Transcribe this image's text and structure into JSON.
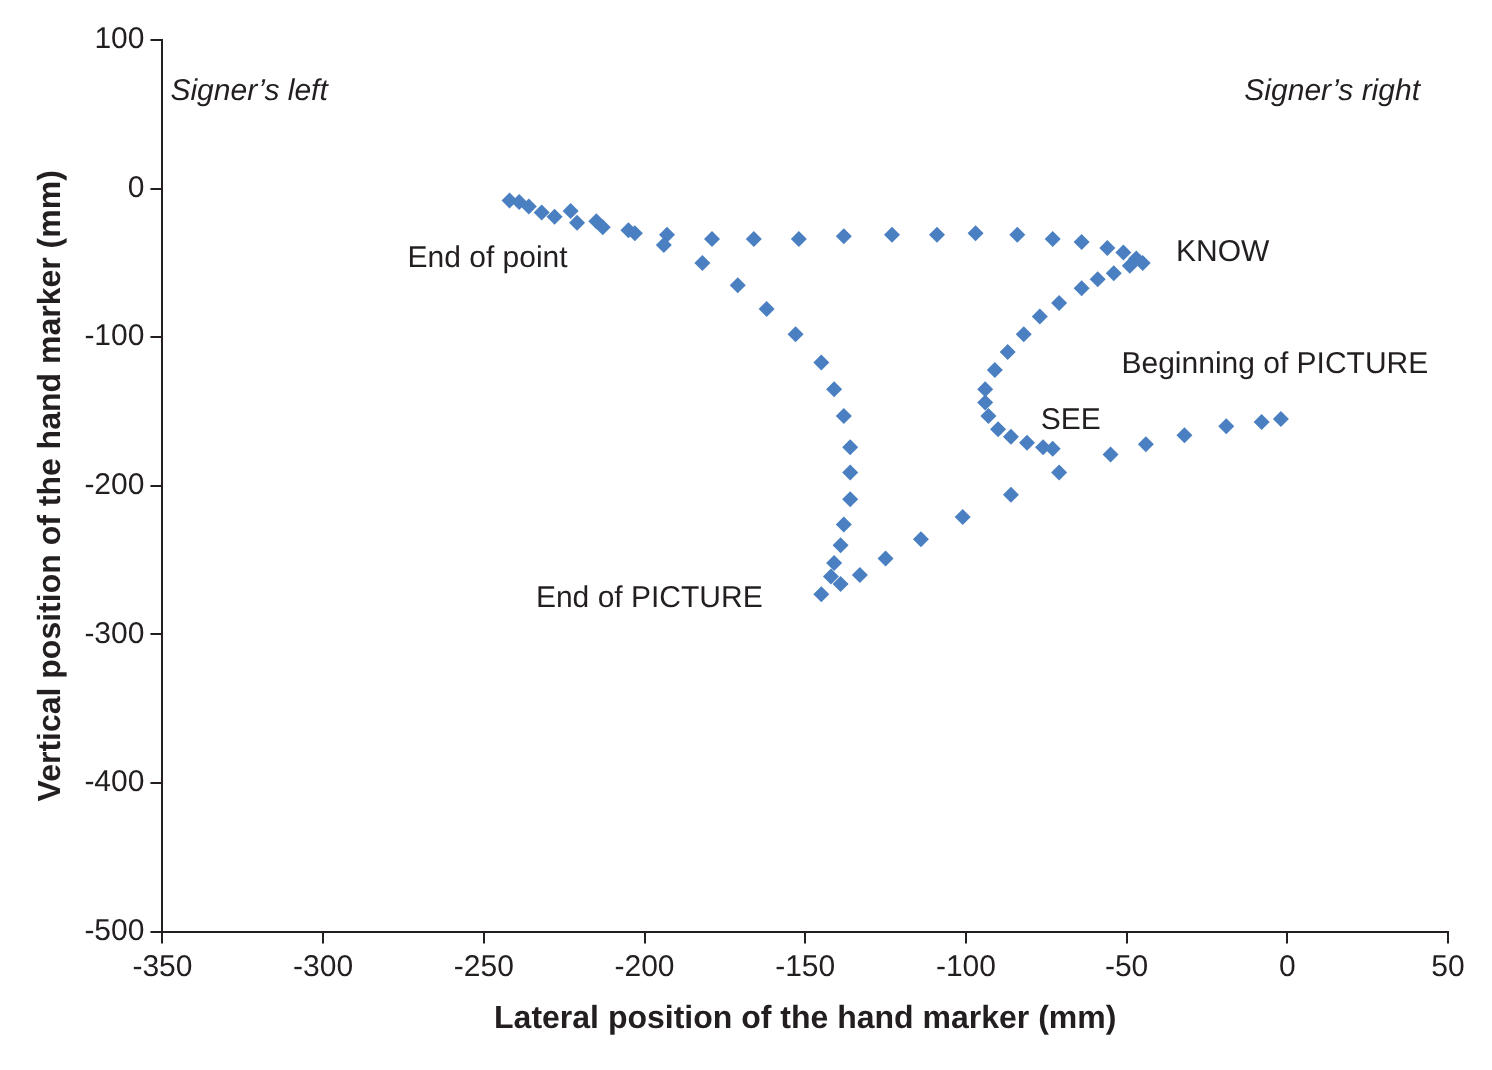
{
  "chart_data": {
    "type": "scatter",
    "xlabel": "Lateral position of the hand marker (mm)",
    "ylabel": "Vertical position of the hand marker (mm)",
    "xlim": [
      -350,
      50
    ],
    "xticks": [
      -350,
      -300,
      -250,
      -200,
      -150,
      -100,
      -50,
      0,
      50
    ],
    "ylim": [
      -500,
      100
    ],
    "yticks": [
      -500,
      -400,
      -300,
      -200,
      -100,
      0,
      100
    ],
    "grid": false,
    "legend": false,
    "marker": "diamond",
    "series": [
      {
        "color": "#4a7fc1",
        "x": [
          -242,
          -239,
          -236,
          -232,
          -228,
          -223,
          -221,
          -215,
          -213,
          -205,
          -203,
          -193,
          -194,
          -179,
          -166,
          -152,
          -138,
          -123,
          -109,
          -97,
          -84,
          -73,
          -64,
          -56,
          -51,
          -47,
          -45,
          -49,
          -54,
          -59,
          -64,
          -71,
          -77,
          -82,
          -87,
          -91,
          -94,
          -94,
          -93,
          -90,
          -86,
          -81,
          -76,
          -73,
          -71,
          -55,
          -44,
          -32,
          -19,
          -8,
          -2,
          -86,
          -101,
          -114,
          -125,
          -133,
          -139,
          -142,
          -141,
          -145,
          -139,
          -138,
          -136,
          -136,
          -136,
          -138,
          -141,
          -145,
          -153,
          -162,
          -171,
          -182
        ],
        "values": [
          -8,
          -9,
          -12,
          -16,
          -19,
          -15,
          -23,
          -22,
          -26,
          -28,
          -30,
          -31,
          -38,
          -34,
          -34,
          -34,
          -32,
          -31,
          -31,
          -30,
          -31,
          -34,
          -36,
          -40,
          -43,
          -47,
          -50,
          -52,
          -57,
          -61,
          -67,
          -77,
          -86,
          -98,
          -110,
          -122,
          -135,
          -144,
          -153,
          -162,
          -167,
          -171,
          -174,
          -175,
          -191,
          -179,
          -172,
          -166,
          -160,
          -157,
          -155,
          -206,
          -221,
          -236,
          -249,
          -260,
          -266,
          -261,
          -252,
          -273,
          -240,
          -226,
          -209,
          -191,
          -174,
          -153,
          -135,
          -117,
          -98,
          -81,
          -65,
          -50
        ]
      }
    ],
    "annotations": [
      "Signer’s left",
      "Signer’s right",
      {
        "text": "End of point",
        "x": -242,
        "y": -8
      },
      {
        "text": "KNOW",
        "x": -45,
        "y": -50
      },
      {
        "text": "Beginning of PICTURE",
        "x": -2,
        "y": -155
      },
      {
        "text": "SEE",
        "x": -73,
        "y": -175
      },
      {
        "text": "End of PICTURE",
        "x": -145,
        "y": -273
      }
    ]
  }
}
